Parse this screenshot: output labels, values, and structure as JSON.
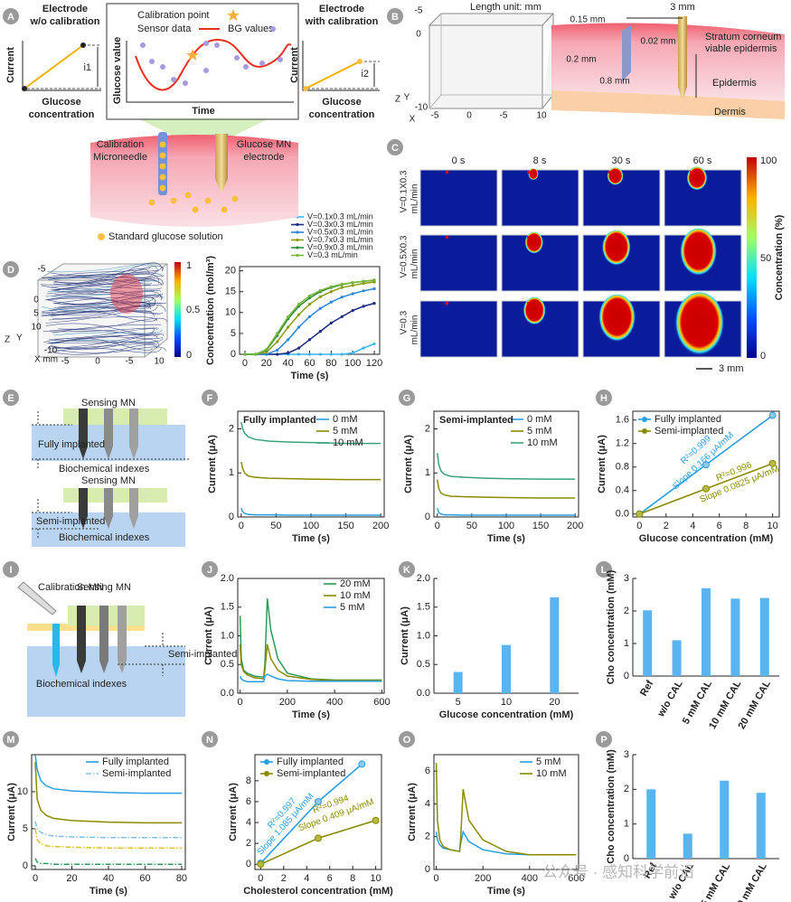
{
  "chart_data": [
    {
      "panel": "D",
      "type": "line",
      "xlabel": "Time (s)",
      "ylabel": "Concentration (mol/m³)",
      "xlim": [
        -5,
        125
      ],
      "ylim": [
        0,
        21
      ],
      "xticks": [
        0,
        20,
        40,
        60,
        80,
        100,
        120
      ],
      "yticks": [
        0,
        5,
        10,
        15,
        20
      ],
      "x": [
        0,
        10,
        20,
        30,
        40,
        50,
        60,
        70,
        80,
        90,
        100,
        110,
        120
      ],
      "legend": "upper right",
      "series": [
        {
          "name": "V=0.1x0.3 mL/min",
          "color": "#3cb4ee",
          "values": [
            0,
            0,
            0,
            0,
            0,
            0,
            0,
            0,
            0,
            0,
            0.3,
            1.5,
            2.5
          ]
        },
        {
          "name": "V=0.3x0.3 mL/min",
          "color": "#1a2a80",
          "values": [
            0,
            0,
            0,
            0,
            0.3,
            1.5,
            3.5,
            5.5,
            7.5,
            9,
            10.5,
            11.5,
            12.2
          ]
        },
        {
          "name": "V=0.5x0.3 mL/min",
          "color": "#2a86d8",
          "values": [
            0,
            0,
            0,
            1,
            3.5,
            6.5,
            9,
            11,
            12.5,
            13.7,
            14.5,
            15.2,
            15.7
          ]
        },
        {
          "name": "V=0.7x0.3 mL/min",
          "color": "#8c9a10",
          "values": [
            0,
            0,
            0.5,
            3,
            6.5,
            9.5,
            12,
            13.8,
            15,
            16,
            16.5,
            17,
            17.3
          ]
        },
        {
          "name": "V=0.9x0.3 mL/min",
          "color": "#2e8a3e",
          "values": [
            0,
            0,
            1,
            4.5,
            8.5,
            11.5,
            13.5,
            15,
            16,
            16.7,
            17.2,
            17.5,
            17.7
          ]
        },
        {
          "name": "V=0.3 mL/min",
          "color": "#78b83a",
          "values": [
            0,
            0,
            1.2,
            5,
            9,
            12,
            14,
            15.3,
            16.2,
            16.8,
            17.2,
            17.5,
            17.8
          ]
        }
      ]
    },
    {
      "panel": "F",
      "type": "line",
      "title": "Fully implanted",
      "xlabel": "Time (s)",
      "ylabel": "Current (μA)",
      "xlim": [
        -5,
        205
      ],
      "ylim": [
        0,
        2.4
      ],
      "xticks": [
        0,
        50,
        100,
        150,
        200
      ],
      "yticks": [
        0,
        1,
        2
      ],
      "legend": "upper right",
      "x": [
        0,
        2,
        5,
        10,
        20,
        40,
        70,
        100,
        150,
        200
      ],
      "series": [
        {
          "name": "0 mM",
          "color": "#2a9fe0",
          "values": [
            0.2,
            0.12,
            0.08,
            0.06,
            0.05,
            0.05,
            0.04,
            0.04,
            0.04,
            0.04
          ]
        },
        {
          "name": "5 mM",
          "color": "#8b8b00",
          "values": [
            1.25,
            1.1,
            1.0,
            0.93,
            0.9,
            0.88,
            0.87,
            0.86,
            0.85,
            0.85
          ]
        },
        {
          "name": "10 mM",
          "color": "#3aa37a",
          "values": [
            2.15,
            2.0,
            1.9,
            1.82,
            1.76,
            1.72,
            1.7,
            1.69,
            1.67,
            1.67
          ]
        }
      ]
    },
    {
      "panel": "G",
      "type": "line",
      "title": "Semi-implanted",
      "xlabel": "Time (s)",
      "ylabel": "Current (μA)",
      "xlim": [
        -5,
        205
      ],
      "ylim": [
        0,
        2.4
      ],
      "xticks": [
        0,
        50,
        100,
        150,
        200
      ],
      "yticks": [
        0,
        1,
        2
      ],
      "legend": "upper right",
      "x": [
        0,
        2,
        5,
        10,
        20,
        40,
        70,
        100,
        150,
        200
      ],
      "series": [
        {
          "name": "0 mM",
          "color": "#2a9fe0",
          "values": [
            0.2,
            0.1,
            0.07,
            0.05,
            0.05,
            0.04,
            0.04,
            0.04,
            0.04,
            0.04
          ]
        },
        {
          "name": "5 mM",
          "color": "#8b8b00",
          "values": [
            0.85,
            0.65,
            0.55,
            0.5,
            0.47,
            0.46,
            0.45,
            0.44,
            0.43,
            0.43
          ]
        },
        {
          "name": "10 mM",
          "color": "#3aa37a",
          "values": [
            1.45,
            1.2,
            1.05,
            0.97,
            0.92,
            0.9,
            0.88,
            0.87,
            0.86,
            0.86
          ]
        }
      ]
    },
    {
      "panel": "H",
      "type": "scatter",
      "xlabel": "Glucose concentration (mM)",
      "ylabel": "Current (μA)",
      "xlim": [
        -0.5,
        10.5
      ],
      "ylim": [
        -0.05,
        1.75
      ],
      "xticks": [
        0,
        2,
        4,
        6,
        8,
        10
      ],
      "yticks": [
        {
          "value": 0,
          "label": "0.0"
        },
        0.4,
        0.8,
        1.2,
        1.6
      ],
      "legend": "upper left",
      "series": [
        {
          "name": "Fully implanted",
          "color": "#2a9fe0",
          "x": [
            0,
            5,
            10
          ],
          "values": [
            0,
            0.84,
            1.68
          ]
        },
        {
          "name": "Semi-implanted",
          "color": "#8b8b00",
          "x": [
            0,
            5,
            10
          ],
          "values": [
            0,
            0.43,
            0.86
          ]
        }
      ],
      "annotations": [
        "R²=0.999",
        "Slope 0.166 μA/mM",
        "R²=0.996",
        "Slope 0.0825 μA/mM"
      ]
    },
    {
      "panel": "J",
      "type": "line",
      "xlabel": "Time (s)",
      "ylabel": "Current (μA)",
      "xlim": [
        -10,
        610
      ],
      "ylim": [
        0,
        2
      ],
      "xticks": [
        0,
        200,
        400,
        600
      ],
      "yticks": [
        {
          "value": 0,
          "label": "0.0"
        },
        0.5,
        {
          "value": 1,
          "label": "1.0"
        },
        1.5,
        {
          "value": 2,
          "label": "2.0"
        }
      ],
      "legend": "upper right",
      "x": [
        0,
        5,
        15,
        30,
        60,
        100,
        105,
        115,
        130,
        160,
        200,
        300,
        400,
        500,
        600
      ],
      "series": [
        {
          "name": "20 mM",
          "color": "#2e9a5a",
          "values": [
            1.35,
            0.6,
            0.4,
            0.35,
            0.3,
            0.28,
            0.5,
            1.65,
            1.1,
            0.6,
            0.35,
            0.25,
            0.23,
            0.23,
            0.23
          ]
        },
        {
          "name": "10 mM",
          "color": "#8b8b00",
          "values": [
            0.85,
            0.5,
            0.38,
            0.32,
            0.27,
            0.25,
            0.4,
            0.85,
            0.6,
            0.4,
            0.3,
            0.24,
            0.22,
            0.22,
            0.22
          ]
        },
        {
          "name": "5 mM",
          "color": "#2a9fe0",
          "values": [
            0.3,
            0.25,
            0.22,
            0.2,
            0.2,
            0.2,
            0.3,
            0.33,
            0.3,
            0.25,
            0.22,
            0.21,
            0.21,
            0.21,
            0.21
          ]
        }
      ]
    },
    {
      "panel": "K",
      "type": "bar",
      "xlabel": "Glucose concentration (mM)",
      "ylabel": "Current (μA)",
      "ylim": [
        0,
        2
      ],
      "yticks": [
        {
          "value": 0,
          "label": "0.0"
        },
        0.5,
        {
          "value": 1,
          "label": "1.0"
        },
        1.5,
        {
          "value": 2,
          "label": "2.0"
        }
      ],
      "categories": [
        "5",
        "10",
        "20"
      ],
      "values": [
        0.37,
        0.84,
        1.67
      ],
      "color": "#5ab4f0"
    },
    {
      "panel": "L",
      "type": "bar",
      "ylabel": "Cho concentration (mM)",
      "ylim": [
        0,
        3
      ],
      "yticks": [
        0,
        1,
        2,
        3
      ],
      "categories": [
        "Ref",
        "w/o CAL",
        "5 mM CAL",
        "10 mM CAL",
        "20 mM CAL"
      ],
      "values": [
        2.02,
        1.1,
        2.7,
        2.38,
        2.4
      ],
      "color": "#5ab4f0"
    },
    {
      "panel": "M",
      "type": "line",
      "xlabel": "Time (s)",
      "ylabel": "Current (μA)",
      "xlim": [
        -2,
        82
      ],
      "ylim": [
        -0.5,
        15
      ],
      "xticks": [
        0,
        20,
        40,
        60,
        80
      ],
      "yticks": [
        0,
        5,
        10
      ],
      "legend": "upper right",
      "x": [
        0,
        1,
        3,
        6,
        10,
        20,
        40,
        60,
        80
      ],
      "series": [
        {
          "name": "Fully implanted",
          "color": "#2a9fe0",
          "dash": "solid",
          "values": [
            15,
            13,
            11.5,
            10.8,
            10.4,
            10.1,
            9.9,
            9.8,
            9.8
          ]
        },
        {
          "name": "Semi-implanted",
          "color": "#7fbfe8",
          "dash": "dashdot",
          "values": [
            6,
            5,
            4.5,
            4.2,
            4.0,
            3.9,
            3.8,
            3.8,
            3.8
          ]
        },
        {
          "color": "#8b8b00",
          "dash": "solid",
          "values": [
            14,
            9,
            7.5,
            6.8,
            6.4,
            6.1,
            5.9,
            5.8,
            5.8
          ]
        },
        {
          "color": "#e0c020",
          "dash": "dashdot",
          "values": [
            5,
            3.5,
            3,
            2.7,
            2.6,
            2.5,
            2.4,
            2.4,
            2.4
          ]
        },
        {
          "color": "#2e9a5a",
          "dash": "dashdot",
          "values": [
            1,
            0.5,
            0.3,
            0.3,
            0.2,
            0.2,
            0.2,
            0.2,
            0.2
          ]
        }
      ]
    },
    {
      "panel": "N",
      "type": "scatter",
      "xlabel": "Cholesterol concentration (mM)",
      "ylabel": "Current (μA)",
      "xlim": [
        -0.5,
        10.5
      ],
      "ylim": [
        -0.5,
        10.5
      ],
      "xticks": [
        0,
        2,
        4,
        6,
        8,
        10
      ],
      "yticks": [
        0,
        2,
        4,
        6,
        8
      ],
      "legend": "upper left",
      "series": [
        {
          "name": "Fully implanted",
          "color": "#2a9fe0",
          "x": [
            0,
            5,
            8.8
          ],
          "values": [
            0.1,
            6,
            9.6
          ]
        },
        {
          "name": "Semi-implanted",
          "color": "#8b8b00",
          "x": [
            0,
            5,
            10
          ],
          "values": [
            0,
            2.5,
            4.2
          ]
        }
      ],
      "annotations": [
        "R²=0.997",
        "Slope 1.085 μA/mM",
        "R²=0.994",
        "Slope 0.409 μA/mM"
      ]
    },
    {
      "panel": "O",
      "type": "line",
      "xlabel": "Time (s)",
      "ylabel": "Current (μA)",
      "xlim": [
        -10,
        610
      ],
      "ylim": [
        0,
        7
      ],
      "xticks": [
        0,
        200,
        400,
        600
      ],
      "yticks": [
        0,
        2,
        4,
        6
      ],
      "legend": "upper right",
      "x": [
        0,
        5,
        15,
        30,
        60,
        100,
        105,
        115,
        140,
        200,
        300,
        400,
        600
      ],
      "series": [
        {
          "name": "5 mM",
          "color": "#2a9fe0",
          "values": [
            2.3,
            1.8,
            1.5,
            1.3,
            1.2,
            1.1,
            1.6,
            2.3,
            1.7,
            1.2,
            0.95,
            0.9,
            0.9
          ]
        },
        {
          "name": "10 mM",
          "color": "#8b8b00",
          "values": [
            6.5,
            3,
            1.8,
            1.4,
            1.2,
            1.1,
            2,
            4.9,
            3,
            1.8,
            1.1,
            0.9,
            0.9
          ]
        }
      ]
    },
    {
      "panel": "P",
      "type": "bar",
      "ylabel": "Cho concentration (mM)",
      "ylim": [
        0,
        3
      ],
      "yticks": [
        0,
        1,
        2,
        3
      ],
      "categories": [
        "Ref",
        "w/o CAL",
        "5 mM CAL",
        "10 mM CAL"
      ],
      "values": [
        2.0,
        0.72,
        2.25,
        1.9
      ],
      "color": "#5ab4f0"
    }
  ],
  "diagrams": {
    "A": {
      "panel": "A",
      "left_title": [
        "Electrode",
        "w/o calibration"
      ],
      "left_ylabel": "Current",
      "left_xlabel": [
        "Glucose",
        "concentration"
      ],
      "i1": "i1",
      "legend": [
        "Calibration point",
        "Sensor data",
        "BG values"
      ],
      "center_ylabel": "Glucose value",
      "center_xlabel": "Time",
      "right_title": [
        "Electrode",
        "with calibration"
      ],
      "right_ylabel": "Current",
      "right_xlabel": [
        "Glucose",
        "concentration"
      ],
      "i2": "i2",
      "calibration_mn": [
        "Calibration",
        "Microneedle"
      ],
      "glucose_mn": [
        "Glucose MN",
        "electrode"
      ],
      "solution": "Standard glucose solution"
    },
    "B": {
      "panel": "B",
      "unit": "Length unit: mm",
      "box_ticks": [
        "-5",
        "0",
        "-5",
        "0",
        "-5",
        "10",
        "Z",
        "Y",
        "-10",
        "X"
      ],
      "dims": [
        "3 mm",
        "0.15 mm",
        "0.02 mm",
        "0.2 mm",
        "0.8 mm"
      ],
      "layers": [
        "Stratum corneum",
        "viable epidermis",
        "Epidermis",
        "Dermis"
      ]
    },
    "C": {
      "panel": "C",
      "times": [
        "0 s",
        "8 s",
        "30 s",
        "60 s"
      ],
      "rows": [
        [
          "V=0.1X0.3",
          "mL/min"
        ],
        [
          "V=0.5X0.3",
          "mL/min"
        ],
        [
          "V=0.3",
          "mL/min"
        ]
      ],
      "colorbar_label": "Concentration (%)",
      "colorbar_ticks": [
        "100",
        "50",
        "0"
      ],
      "scale": "3 mm"
    },
    "D": {
      "ticks": [
        "-5",
        "0",
        "5",
        "10",
        "-10",
        "-5",
        "0",
        "-5",
        "10",
        "Z",
        "Y",
        "X mm"
      ],
      "colorbar_ticks": [
        "1",
        "0.5",
        "0"
      ]
    },
    "E": {
      "panel": "E",
      "labels": [
        "Sensing MN",
        "Fully implanted",
        "Biochemical indexes",
        "Sensing MN",
        "Semi-implanted",
        "Biochemical indexes"
      ]
    },
    "I": {
      "panel": "I",
      "labels": [
        "Calibration MN",
        "Sensing MN",
        "Semi-implanted",
        "Biochemical indexes"
      ]
    }
  },
  "watermark": "公众号 · 感知科学前沿"
}
